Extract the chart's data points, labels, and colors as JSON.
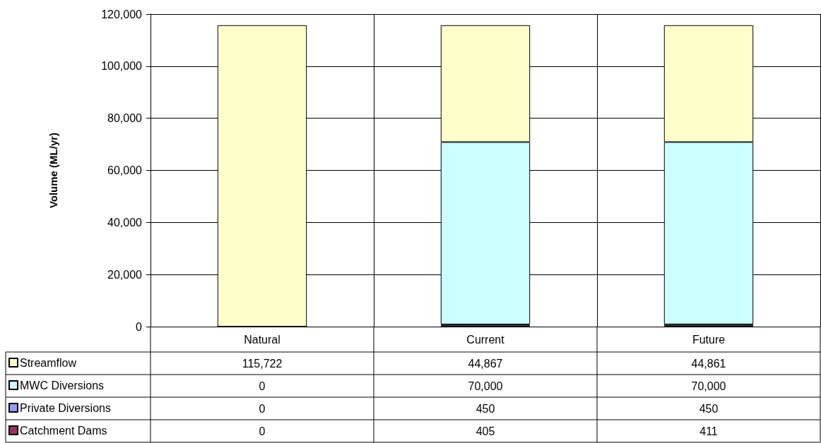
{
  "chart_data": {
    "type": "bar",
    "ylabel": "Volume (ML/yr)",
    "categories": [
      "Natural",
      "Current",
      "Future"
    ],
    "stacked": true,
    "series": [
      {
        "name": "Catchment Dams",
        "color": "#993366",
        "values": [
          0,
          405,
          411
        ],
        "value_labels": [
          "0",
          "405",
          "411"
        ]
      },
      {
        "name": "Private Diversions",
        "color": "#9999ff",
        "values": [
          0,
          450,
          450
        ],
        "value_labels": [
          "0",
          "450",
          "450"
        ]
      },
      {
        "name": "MWC Diversions",
        "color": "#ccffff",
        "values": [
          0,
          70000,
          70000
        ],
        "value_labels": [
          "0",
          "70,000",
          "70,000"
        ]
      },
      {
        "name": "Streamflow",
        "color": "#ffffcc",
        "values": [
          115722,
          44867,
          44861
        ],
        "value_labels": [
          "115,722",
          "44,867",
          "44,861"
        ]
      }
    ],
    "ylim": [
      0,
      120000
    ],
    "yticks": [
      {
        "value": 0,
        "label": "0"
      },
      {
        "value": 20000,
        "label": "20,000"
      },
      {
        "value": 40000,
        "label": "40,000"
      },
      {
        "value": 60000,
        "label": "60,000"
      },
      {
        "value": 80000,
        "label": "80,000"
      },
      {
        "value": 100000,
        "label": "100,000"
      },
      {
        "value": 120000,
        "label": "120,000"
      }
    ],
    "grid": true,
    "legend": "bottom left"
  }
}
